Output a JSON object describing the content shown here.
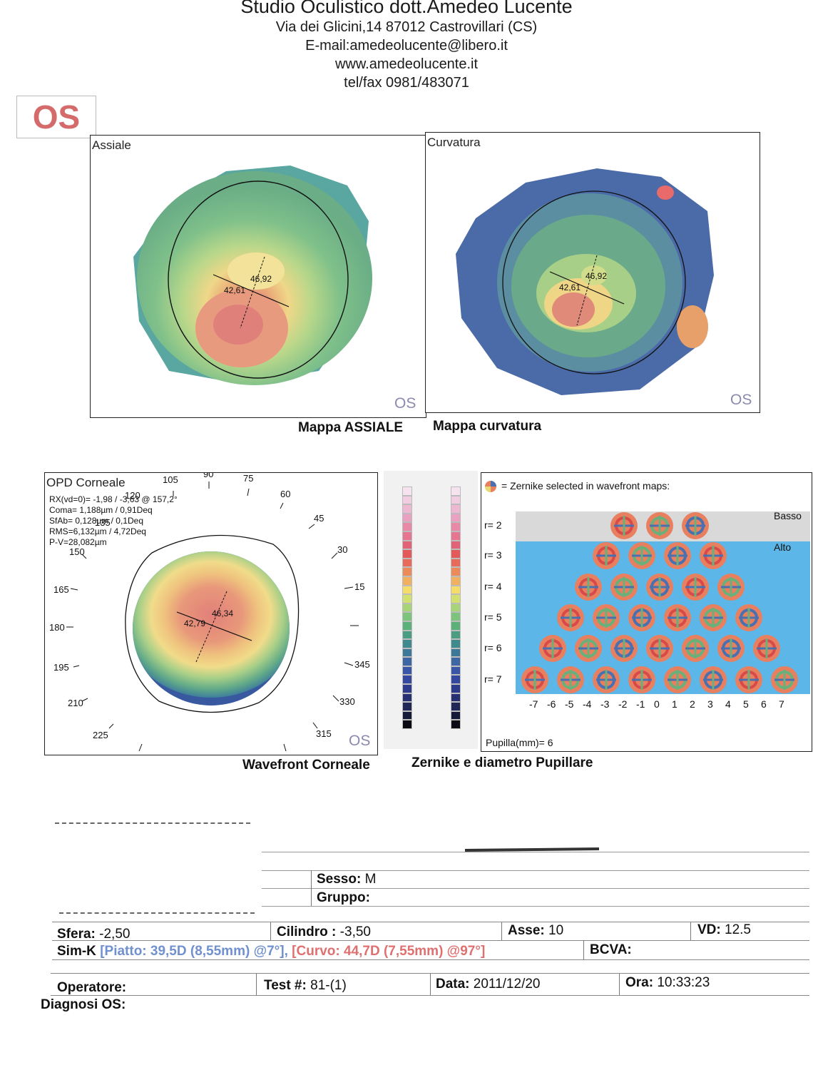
{
  "header": {
    "title": "Studio Oculistico dott.Amedeo Lucente",
    "address": "Via dei Glicini,14  87012 Castrovillari (CS)",
    "email": "E-mail:amedeolucente@libero.it",
    "website": "www.amedeolucente.it",
    "phone": "tel/fax 0981/483071"
  },
  "eye": "OS",
  "maps": {
    "axial": {
      "label": "Assiale",
      "os": "OS",
      "caption": "Mappa ASSIALE",
      "k1": "42,61",
      "k2": "46,92"
    },
    "curvature": {
      "label": "Curvatura",
      "os": "OS",
      "caption": "Mappa curvatura",
      "k1": "42,61",
      "k2": "46,92"
    }
  },
  "wavefront": {
    "label": "OPD Corneale",
    "rx": "RX(vd=0)= -1,98 / -3,63 @ 157,2°",
    "coma": "Coma= 1,188µm / 0,91Deq",
    "sfab": "SfAb= 0,128µm / 0,1Deq",
    "rms": "RMS=6,132µm / 4,72Deq",
    "pv": "P-V=28,082µm",
    "k1": "42,79",
    "k2": "46,34",
    "os": "OS",
    "caption": "Wavefront Corneale",
    "degrees": [
      "105",
      "90",
      "75",
      "60",
      "45",
      "30",
      "15",
      "345",
      "330",
      "315",
      "225",
      "210",
      "195",
      "180",
      "165",
      "150",
      "135",
      "120"
    ]
  },
  "zernike": {
    "legend": "= Zernike selected in wavefront maps:",
    "low": "Basso",
    "high": "Alto",
    "orders": [
      "r= 2",
      "r= 3",
      "r= 4",
      "r= 5",
      "r= 6",
      "r= 7"
    ],
    "frequencies": [
      "-7",
      "-6",
      "-5",
      "-4",
      "-3",
      "-2",
      "-1",
      "0",
      "1",
      "2",
      "3",
      "4",
      "5",
      "6",
      "7"
    ],
    "pupil": "Pupilla(mm)= 6",
    "caption": "Zernike e diametro Pupillare"
  },
  "scale": {
    "colors": [
      "#f6e3ef",
      "#f2cde2",
      "#eeb8d2",
      "#eaa0c0",
      "#e889a8",
      "#e57590",
      "#e26278",
      "#e45a5a",
      "#e86a5a",
      "#ec8a5a",
      "#f0b060",
      "#f6dc6a",
      "#d2e070",
      "#a8d478",
      "#7cc47c",
      "#5cb07a",
      "#4a9c82",
      "#3e8a8c",
      "#3c7898",
      "#3c66a4",
      "#3a56a8",
      "#3448a0",
      "#2e3a8c",
      "#283074",
      "#202658",
      "#161a3a",
      "#0a0a14"
    ]
  },
  "patient": {
    "sex_label": "Sesso:",
    "sex_value": "M",
    "group_label": "Gruppo:"
  },
  "refraction": {
    "sfera_label": "Sfera:",
    "sfera_value": "-2,50",
    "cilindro_label": "Cilindro :",
    "cilindro_value": "-3,50",
    "asse_label": "Asse:",
    "asse_value": "10",
    "vd_label": "VD:",
    "vd_value": "12.5",
    "simk_label": "Sim-K",
    "simk_flat": "[Piatto: 39,5D (8,55mm) @7°],",
    "simk_steep": "[Curvo: 44,7D (7,55mm) @97°]",
    "bcva_label": "BCVA:"
  },
  "session": {
    "operatore_label": "Operatore:",
    "test_label": "Test #:",
    "test_value": "81-(1)",
    "data_label": "Data:",
    "data_value": "2011/12/20",
    "ora_label": "Ora:",
    "ora_value": "10:33:23",
    "diagnosi_label": "Diagnosi OS:"
  },
  "colors": {
    "os_red": "#d46a6a",
    "simk_flat": "#7090d0",
    "simk_steep": "#e07070"
  }
}
